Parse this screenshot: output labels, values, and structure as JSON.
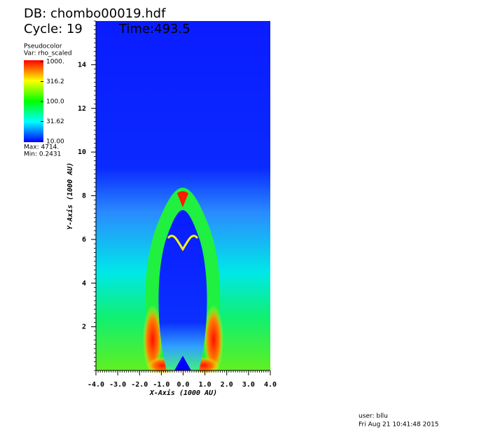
{
  "header": {
    "db": "DB: chombo00019.hdf",
    "cycle": "Cycle: 19",
    "time": "Time:493.5"
  },
  "legend": {
    "title": "Pseudocolor",
    "var": "Var: rho_scaled",
    "labels": [
      "1000.",
      "316.2",
      "100.0",
      "31.62",
      "10.00"
    ],
    "max": "Max: 4714.",
    "min": "Min: 0.2431"
  },
  "axes": {
    "xlabel": "X-Axis (1000 AU)",
    "ylabel": "Y-Axis (1000 AU)",
    "xlim": [
      -4,
      4
    ],
    "ylim": [
      0,
      16
    ],
    "xticks": [
      {
        "value": -4,
        "label": "-4.0"
      },
      {
        "value": -3,
        "label": "-3.0"
      },
      {
        "value": -2,
        "label": "-2.0"
      },
      {
        "value": -1,
        "label": "-1.0"
      },
      {
        "value": 0,
        "label": "0.0"
      },
      {
        "value": 1,
        "label": "1.0"
      },
      {
        "value": 2,
        "label": "2.0"
      },
      {
        "value": 3,
        "label": "3.0"
      },
      {
        "value": 4,
        "label": "4.0"
      }
    ],
    "yticks": [
      2,
      4,
      6,
      8,
      10,
      12,
      14
    ]
  },
  "footer": {
    "user": "user: bllu",
    "date": "Fri Aug 21 10:41:48 2015"
  }
}
